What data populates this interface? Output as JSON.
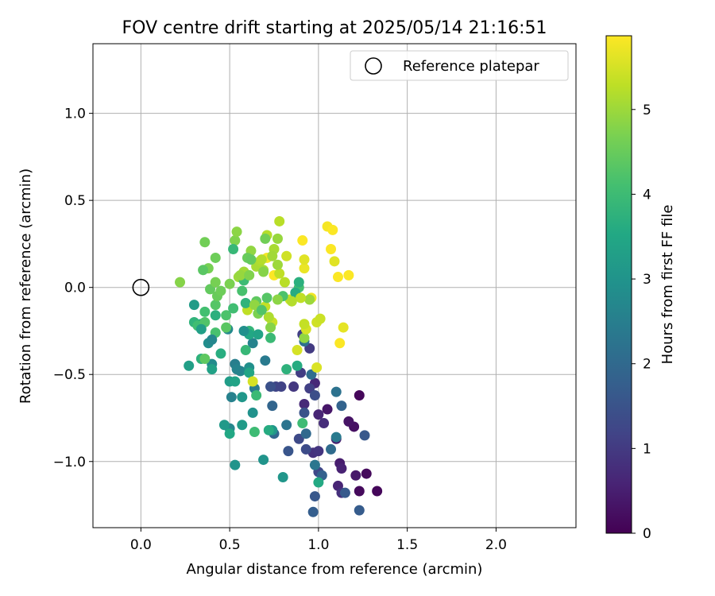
{
  "chart_data": {
    "type": "scatter",
    "title": "FOV centre drift starting at 2025/05/14 21:16:51",
    "xlabel": "Angular distance from reference (arcmin)",
    "ylabel": "Rotation from reference (arcmin)",
    "xlim": [
      -0.27,
      2.45
    ],
    "ylim": [
      -1.38,
      1.4
    ],
    "xticks": [
      0.0,
      0.5,
      1.0,
      1.5,
      2.0
    ],
    "xtick_labels": [
      "0.0",
      "0.5",
      "1.0",
      "1.5",
      "2.0"
    ],
    "yticks": [
      -1.0,
      -0.5,
      0.0,
      0.5,
      1.0
    ],
    "ytick_labels": [
      "−1.0",
      "−0.5",
      "0.0",
      "0.5",
      "1.0"
    ],
    "grid": true,
    "legend": {
      "position": "top-right",
      "entries": [
        "Reference platepar"
      ]
    },
    "reference_point": {
      "x": 0.0,
      "y": 0.0
    },
    "colorbar": {
      "label": "Hours from first FF file",
      "range": [
        0,
        5.87
      ],
      "ticks": [
        0,
        1,
        2,
        3,
        4,
        5
      ],
      "tick_labels": [
        "0",
        "1",
        "2",
        "3",
        "4",
        "5"
      ],
      "colormap": "viridis"
    },
    "series": [
      {
        "points": [
          {
            "x": 1.23,
            "y": -0.62,
            "c": 0.1
          },
          {
            "x": 1.33,
            "y": -1.17,
            "c": 0.1
          },
          {
            "x": 1.27,
            "y": -1.07,
            "c": 0.15
          },
          {
            "x": 1.23,
            "y": -1.17,
            "c": 0.15
          },
          {
            "x": 1.2,
            "y": -0.8,
            "c": 0.25
          },
          {
            "x": 1.17,
            "y": -0.77,
            "c": 0.3
          },
          {
            "x": 1.05,
            "y": -0.7,
            "c": 0.35
          },
          {
            "x": 1.21,
            "y": -1.08,
            "c": 0.4
          },
          {
            "x": 1.12,
            "y": -1.01,
            "c": 0.45
          },
          {
            "x": 1.1,
            "y": -0.87,
            "c": 0.5
          },
          {
            "x": 1.13,
            "y": -1.04,
            "c": 0.55
          },
          {
            "x": 1.0,
            "y": -0.73,
            "c": 0.6
          },
          {
            "x": 1.11,
            "y": -1.14,
            "c": 0.6
          },
          {
            "x": 0.98,
            "y": -0.55,
            "c": 0.65
          },
          {
            "x": 0.92,
            "y": -0.67,
            "c": 0.7
          },
          {
            "x": 1.03,
            "y": -0.78,
            "c": 0.75
          },
          {
            "x": 1.13,
            "y": -1.18,
            "c": 0.8
          },
          {
            "x": 0.97,
            "y": -0.95,
            "c": 0.85
          },
          {
            "x": 1.0,
            "y": -0.94,
            "c": 0.9
          },
          {
            "x": 0.86,
            "y": -0.57,
            "c": 0.95
          },
          {
            "x": 0.95,
            "y": -0.35,
            "c": 1.0
          },
          {
            "x": 0.9,
            "y": -0.49,
            "c": 1.05
          },
          {
            "x": 0.95,
            "y": -0.58,
            "c": 1.1
          },
          {
            "x": 0.91,
            "y": -0.27,
            "c": 1.1
          },
          {
            "x": 0.79,
            "y": -0.57,
            "c": 1.15
          },
          {
            "x": 0.76,
            "y": -0.57,
            "c": 1.2
          },
          {
            "x": 1.0,
            "y": -1.06,
            "c": 1.25
          },
          {
            "x": 0.89,
            "y": -0.87,
            "c": 1.3
          },
          {
            "x": 0.93,
            "y": -0.93,
            "c": 1.35
          },
          {
            "x": 0.98,
            "y": -0.62,
            "c": 1.4
          },
          {
            "x": 0.73,
            "y": -0.57,
            "c": 1.45
          },
          {
            "x": 0.92,
            "y": -0.72,
            "c": 1.5
          },
          {
            "x": 0.83,
            "y": -0.94,
            "c": 1.55
          },
          {
            "x": 0.98,
            "y": -1.2,
            "c": 1.6
          },
          {
            "x": 1.26,
            "y": -0.85,
            "c": 1.6
          },
          {
            "x": 1.15,
            "y": -1.18,
            "c": 1.65
          },
          {
            "x": 1.23,
            "y": -1.28,
            "c": 1.7
          },
          {
            "x": 0.97,
            "y": -1.29,
            "c": 1.75
          },
          {
            "x": 1.02,
            "y": -1.08,
            "c": 1.8
          },
          {
            "x": 1.13,
            "y": -0.68,
            "c": 1.85
          },
          {
            "x": 0.74,
            "y": -0.68,
            "c": 1.9
          },
          {
            "x": 0.75,
            "y": -0.84,
            "c": 1.95
          },
          {
            "x": 0.93,
            "y": -0.84,
            "c": 2.0
          },
          {
            "x": 1.07,
            "y": -0.93,
            "c": 2.05
          },
          {
            "x": 0.96,
            "y": -0.5,
            "c": 2.1
          },
          {
            "x": 0.92,
            "y": -0.31,
            "c": 2.15
          },
          {
            "x": 1.1,
            "y": -0.6,
            "c": 2.2
          },
          {
            "x": 0.82,
            "y": -0.79,
            "c": 2.25
          },
          {
            "x": 0.98,
            "y": -1.02,
            "c": 2.3
          },
          {
            "x": 1.1,
            "y": -0.86,
            "c": 2.4
          },
          {
            "x": 0.7,
            "y": -0.42,
            "c": 2.4
          },
          {
            "x": 0.64,
            "y": -0.58,
            "c": 2.45
          },
          {
            "x": 0.53,
            "y": -0.44,
            "c": 2.5
          },
          {
            "x": 0.51,
            "y": -0.63,
            "c": 2.55
          },
          {
            "x": 0.63,
            "y": -0.32,
            "c": 2.6
          },
          {
            "x": 0.56,
            "y": -0.48,
            "c": 2.65
          },
          {
            "x": 0.5,
            "y": -0.81,
            "c": 2.7
          },
          {
            "x": 0.49,
            "y": -0.24,
            "c": 2.75
          },
          {
            "x": 0.4,
            "y": -0.44,
            "c": 2.8
          },
          {
            "x": 0.38,
            "y": -0.32,
            "c": 2.85
          },
          {
            "x": 0.61,
            "y": -0.46,
            "c": 2.9
          },
          {
            "x": 0.63,
            "y": -0.72,
            "c": 2.95
          },
          {
            "x": 0.53,
            "y": -1.02,
            "c": 3.0
          },
          {
            "x": 0.69,
            "y": -0.99,
            "c": 3.0
          },
          {
            "x": 0.8,
            "y": -1.09,
            "c": 3.05
          },
          {
            "x": 0.74,
            "y": -0.82,
            "c": 3.1
          },
          {
            "x": 0.47,
            "y": -0.79,
            "c": 3.15
          },
          {
            "x": 0.57,
            "y": -0.79,
            "c": 3.2
          },
          {
            "x": 0.5,
            "y": -0.54,
            "c": 3.25
          },
          {
            "x": 0.27,
            "y": -0.45,
            "c": 3.3
          },
          {
            "x": 0.4,
            "y": -0.47,
            "c": 3.35
          },
          {
            "x": 0.53,
            "y": -0.54,
            "c": 3.4
          },
          {
            "x": 0.61,
            "y": -0.49,
            "c": 3.45
          },
          {
            "x": 0.5,
            "y": -0.84,
            "c": 3.5
          },
          {
            "x": 1.0,
            "y": -1.12,
            "c": 3.55
          },
          {
            "x": 0.72,
            "y": -0.82,
            "c": 3.6
          },
          {
            "x": 0.34,
            "y": -0.21,
            "c": 3.6
          },
          {
            "x": 0.45,
            "y": -0.38,
            "c": 3.65
          },
          {
            "x": 0.42,
            "y": -0.16,
            "c": 3.7
          },
          {
            "x": 0.34,
            "y": -0.41,
            "c": 3.75
          },
          {
            "x": 0.3,
            "y": -0.2,
            "c": 3.8
          },
          {
            "x": 0.61,
            "y": -0.25,
            "c": 3.85
          },
          {
            "x": 0.59,
            "y": -0.36,
            "c": 3.9
          },
          {
            "x": 0.73,
            "y": -0.29,
            "c": 3.95
          },
          {
            "x": 0.91,
            "y": -0.78,
            "c": 4.0
          },
          {
            "x": 0.64,
            "y": -0.83,
            "c": 4.0
          },
          {
            "x": 0.32,
            "y": -0.22,
            "c": 4.05
          },
          {
            "x": 0.36,
            "y": -0.14,
            "c": 4.1
          },
          {
            "x": 0.42,
            "y": -0.26,
            "c": 4.15
          },
          {
            "x": 0.48,
            "y": -0.16,
            "c": 4.2
          },
          {
            "x": 0.36,
            "y": -0.2,
            "c": 4.25
          },
          {
            "x": 0.42,
            "y": -0.1,
            "c": 4.3
          },
          {
            "x": 0.48,
            "y": -0.23,
            "c": 4.35
          },
          {
            "x": 0.36,
            "y": -0.41,
            "c": 4.4
          },
          {
            "x": 0.39,
            "y": -0.01,
            "c": 4.45
          },
          {
            "x": 0.43,
            "y": -0.05,
            "c": 4.5
          },
          {
            "x": 0.42,
            "y": 0.17,
            "c": 4.55
          },
          {
            "x": 0.36,
            "y": 0.26,
            "c": 4.6
          },
          {
            "x": 0.42,
            "y": 0.03,
            "c": 4.65
          },
          {
            "x": 0.5,
            "y": 0.02,
            "c": 4.7
          },
          {
            "x": 0.53,
            "y": 0.27,
            "c": 4.75
          },
          {
            "x": 0.22,
            "y": 0.03,
            "c": 4.8
          },
          {
            "x": 0.54,
            "y": 0.32,
            "c": 4.85
          },
          {
            "x": 0.62,
            "y": 0.21,
            "c": 4.9
          },
          {
            "x": 0.77,
            "y": 0.28,
            "c": 4.95
          },
          {
            "x": 0.55,
            "y": 0.06,
            "c": 5.0
          },
          {
            "x": 0.58,
            "y": 0.09,
            "c": 5.05
          },
          {
            "x": 0.65,
            "y": 0.12,
            "c": 5.1
          },
          {
            "x": 0.67,
            "y": 0.15,
            "c": 5.15
          },
          {
            "x": 0.71,
            "y": 0.3,
            "c": 5.2
          },
          {
            "x": 0.78,
            "y": 0.38,
            "c": 5.25
          },
          {
            "x": 0.6,
            "y": -0.13,
            "c": 5.3
          },
          {
            "x": 0.7,
            "y": -0.11,
            "c": 5.35
          },
          {
            "x": 0.74,
            "y": -0.2,
            "c": 5.4
          },
          {
            "x": 0.82,
            "y": 0.18,
            "c": 5.45
          },
          {
            "x": 0.88,
            "y": -0.36,
            "c": 5.5
          },
          {
            "x": 0.99,
            "y": -0.46,
            "c": 5.55
          },
          {
            "x": 1.09,
            "y": 0.15,
            "c": 5.6
          },
          {
            "x": 1.14,
            "y": -0.23,
            "c": 5.65
          },
          {
            "x": 0.92,
            "y": 0.11,
            "c": 5.7
          },
          {
            "x": 0.96,
            "y": -0.06,
            "c": 5.75
          },
          {
            "x": 1.05,
            "y": 0.35,
            "c": 5.8
          },
          {
            "x": 1.07,
            "y": 0.22,
            "c": 5.85
          },
          {
            "x": 1.08,
            "y": 0.33,
            "c": 5.85
          },
          {
            "x": 0.91,
            "y": 0.27,
            "c": 5.85
          },
          {
            "x": 1.11,
            "y": 0.06,
            "c": 5.85
          },
          {
            "x": 1.17,
            "y": 0.07,
            "c": 5.85
          },
          {
            "x": 1.12,
            "y": -0.32,
            "c": 5.85
          },
          {
            "x": 0.75,
            "y": 0.07,
            "c": 5.85
          },
          {
            "x": 0.71,
            "y": 0.17,
            "c": 5.8
          },
          {
            "x": 0.63,
            "y": -0.54,
            "c": 5.5
          },
          {
            "x": 0.84,
            "y": -0.07,
            "c": 5.4
          },
          {
            "x": 0.78,
            "y": 0.08,
            "c": 5.3
          },
          {
            "x": 0.68,
            "y": 0.16,
            "c": 5.2
          },
          {
            "x": 0.75,
            "y": 0.22,
            "c": 5.1
          },
          {
            "x": 0.95,
            "y": -0.07,
            "c": 5.0
          },
          {
            "x": 0.92,
            "y": -0.29,
            "c": 4.9
          },
          {
            "x": 0.73,
            "y": -0.23,
            "c": 4.8
          },
          {
            "x": 0.66,
            "y": -0.15,
            "c": 4.7
          },
          {
            "x": 0.7,
            "y": 0.28,
            "c": 4.6
          },
          {
            "x": 0.6,
            "y": 0.17,
            "c": 4.5
          },
          {
            "x": 0.65,
            "y": -0.08,
            "c": 4.4
          },
          {
            "x": 0.71,
            "y": -0.06,
            "c": 4.3
          },
          {
            "x": 0.8,
            "y": -0.05,
            "c": 4.2
          },
          {
            "x": 0.89,
            "y": 0.0,
            "c": 4.1
          },
          {
            "x": 0.58,
            "y": 0.04,
            "c": 4.0
          },
          {
            "x": 0.52,
            "y": 0.22,
            "c": 3.9
          },
          {
            "x": 0.59,
            "y": -0.09,
            "c": 3.8
          },
          {
            "x": 0.89,
            "y": 0.03,
            "c": 3.7
          },
          {
            "x": 0.87,
            "y": -0.03,
            "c": 3.6
          },
          {
            "x": 0.92,
            "y": 0.16,
            "c": 5.6
          },
          {
            "x": 0.93,
            "y": -0.24,
            "c": 5.5
          },
          {
            "x": 0.99,
            "y": -0.2,
            "c": 5.45
          },
          {
            "x": 1.01,
            "y": -0.18,
            "c": 5.4
          },
          {
            "x": 0.92,
            "y": -0.21,
            "c": 5.35
          },
          {
            "x": 0.9,
            "y": -0.06,
            "c": 5.3
          },
          {
            "x": 0.81,
            "y": 0.03,
            "c": 5.25
          },
          {
            "x": 0.85,
            "y": -0.08,
            "c": 5.2
          },
          {
            "x": 0.72,
            "y": -0.17,
            "c": 5.15
          },
          {
            "x": 0.69,
            "y": 0.1,
            "c": 5.1
          },
          {
            "x": 0.74,
            "y": 0.18,
            "c": 5.05
          },
          {
            "x": 0.77,
            "y": 0.13,
            "c": 5.0
          },
          {
            "x": 0.56,
            "y": 0.07,
            "c": 4.95
          },
          {
            "x": 0.64,
            "y": -0.1,
            "c": 4.9
          },
          {
            "x": 0.77,
            "y": -0.07,
            "c": 4.85
          },
          {
            "x": 0.69,
            "y": 0.09,
            "c": 4.8
          },
          {
            "x": 0.61,
            "y": 0.07,
            "c": 4.75
          },
          {
            "x": 0.38,
            "y": 0.11,
            "c": 4.65
          },
          {
            "x": 0.45,
            "y": -0.02,
            "c": 4.55
          },
          {
            "x": 0.62,
            "y": 0.16,
            "c": 4.45
          },
          {
            "x": 0.35,
            "y": 0.1,
            "c": 4.35
          },
          {
            "x": 0.68,
            "y": -0.13,
            "c": 4.25
          },
          {
            "x": 0.57,
            "y": -0.02,
            "c": 4.15
          },
          {
            "x": 0.52,
            "y": -0.12,
            "c": 4.05
          },
          {
            "x": 0.65,
            "y": -0.62,
            "c": 3.95
          },
          {
            "x": 0.82,
            "y": -0.47,
            "c": 3.75
          },
          {
            "x": 0.88,
            "y": -0.45,
            "c": 3.6
          },
          {
            "x": 0.61,
            "y": -0.27,
            "c": 3.5
          },
          {
            "x": 0.66,
            "y": -0.27,
            "c": 3.4
          },
          {
            "x": 0.34,
            "y": -0.24,
            "c": 3.3
          },
          {
            "x": 0.3,
            "y": -0.1,
            "c": 3.2
          },
          {
            "x": 0.57,
            "y": -0.63,
            "c": 3.1
          },
          {
            "x": 0.58,
            "y": -0.25,
            "c": 2.9
          },
          {
            "x": 0.4,
            "y": -0.3,
            "c": 2.7
          },
          {
            "x": 0.54,
            "y": -0.47,
            "c": 2.6
          }
        ]
      }
    ]
  }
}
